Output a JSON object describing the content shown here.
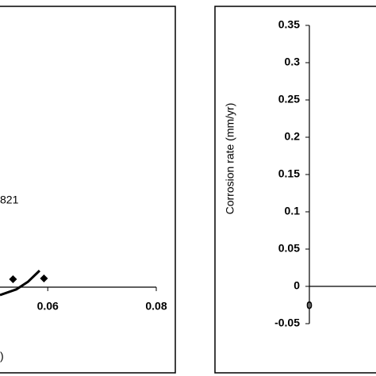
{
  "chart_data": [
    {
      "type": "scatter",
      "annotation": "821",
      "x_label": ")",
      "x": [
        0.0536,
        0.0593
      ],
      "values": [
        0.0105,
        0.0116
      ],
      "fit": {
        "x": [
          0.0512,
          0.0542,
          0.0564,
          0.0585
        ],
        "values": [
          -0.0105,
          -0.003,
          0.0074,
          0.022
        ]
      },
      "xlim": [
        0.0512,
        0.08
      ],
      "xticks": [
        0.06,
        0.08
      ],
      "ylim": [
        0,
        0.35
      ],
      "color": "#000000"
    },
    {
      "type": "line",
      "y_label": "Corrosion rate (mm/yr)",
      "xlim": [
        0,
        0.08
      ],
      "xticks": [
        0
      ],
      "ylim": [
        -0.05,
        0.35
      ],
      "yticks": [
        -0.05,
        0,
        0.05,
        0.1,
        0.15,
        0.2,
        0.25,
        0.3,
        0.35
      ],
      "color": "#000000"
    }
  ]
}
